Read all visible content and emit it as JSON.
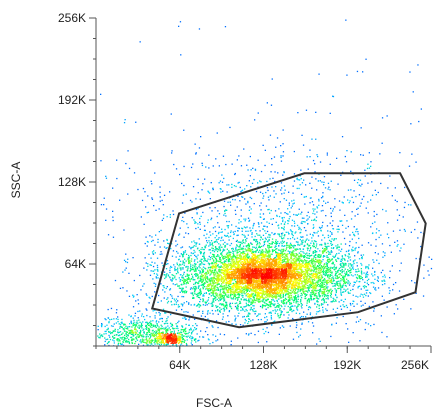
{
  "chart_data": {
    "type": "scatter",
    "title": "",
    "xlabel": "FSC-A",
    "ylabel": "SSC-A",
    "xlim": [
      0,
      262144
    ],
    "ylim": [
      0,
      262144
    ],
    "x_ticks": [
      {
        "value": 65536,
        "label": "64K"
      },
      {
        "value": 131072,
        "label": "128K"
      },
      {
        "value": 196608,
        "label": "192K"
      },
      {
        "value": 262144,
        "label": "256K"
      }
    ],
    "y_ticks": [
      {
        "value": 65536,
        "label": "64K"
      },
      {
        "value": 131072,
        "label": "128K"
      },
      {
        "value": 196608,
        "label": "192K"
      },
      {
        "value": 262144,
        "label": "256K"
      }
    ],
    "grid": false,
    "colormap": [
      "#0000ff",
      "#00c8ff",
      "#00ff64",
      "#ffff00",
      "#ff8000",
      "#ff0000"
    ],
    "populations": [
      {
        "center": [
          131072,
          56000
        ],
        "spread": [
          36000,
          14000
        ],
        "count": 5200
      },
      {
        "center": [
          131072,
          58000
        ],
        "spread": [
          14000,
          6000
        ],
        "count": 900
      },
      {
        "center": [
          58000,
          6000
        ],
        "spread": [
          4500,
          1800
        ],
        "count": 260
      },
      {
        "center": [
          40000,
          10000
        ],
        "spread": [
          22000,
          7000
        ],
        "count": 800
      },
      {
        "center": [
          140000,
          90000
        ],
        "spread": [
          55000,
          35000
        ],
        "count": 1400
      },
      {
        "center": [
          131072,
          131072
        ],
        "spread": [
          130000,
          130000
        ],
        "count": 160
      }
    ],
    "gate": {
      "points": [
        [
          65000,
          106000
        ],
        [
          163000,
          138000
        ],
        [
          238000,
          138000
        ],
        [
          258000,
          98000
        ],
        [
          250000,
          43000
        ],
        [
          205000,
          27000
        ],
        [
          112000,
          15000
        ],
        [
          44000,
          30000
        ]
      ],
      "color": "#333333"
    }
  }
}
